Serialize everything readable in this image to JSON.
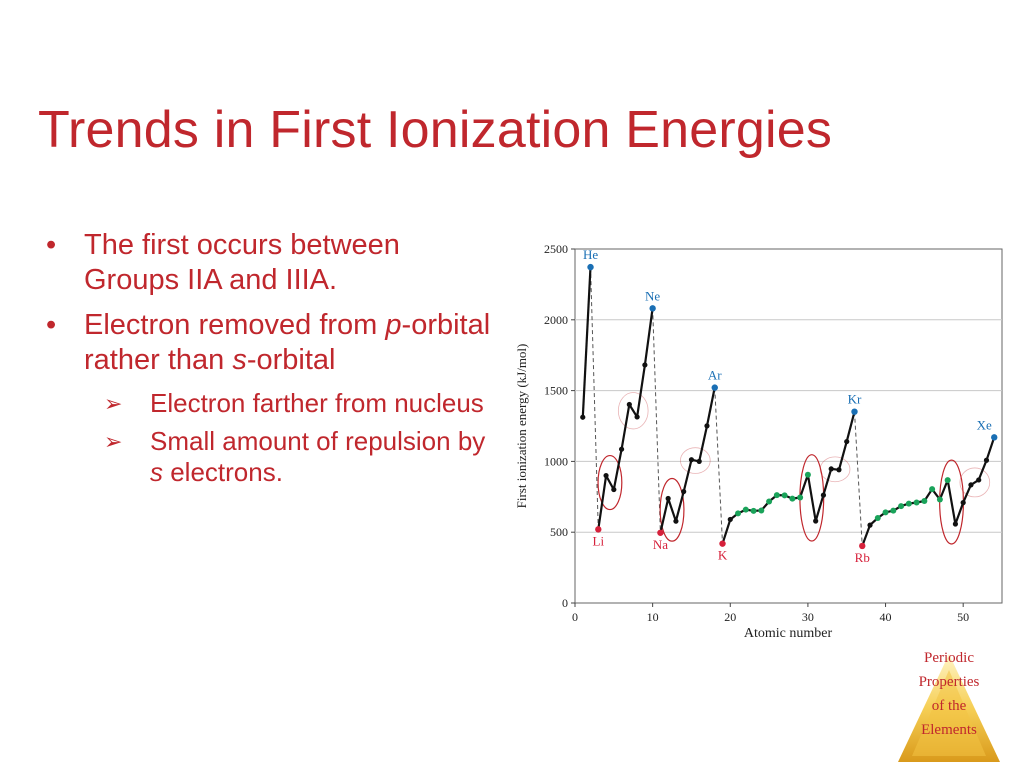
{
  "slide": {
    "title": "Trends in First Ionization Energies",
    "bullets": [
      {
        "parts": [
          {
            "t": "The first occurs between Groups IIA and IIIA.",
            "i": false
          }
        ]
      },
      {
        "parts": [
          {
            "t": "Electron removed from ",
            "i": false
          },
          {
            "t": "p",
            "i": true
          },
          {
            "t": "-orbital rather than ",
            "i": false
          },
          {
            "t": "s",
            "i": true
          },
          {
            "t": "-orbital",
            "i": false
          }
        ],
        "sub": [
          {
            "parts": [
              {
                "t": "Electron farther from nucleus",
                "i": false
              }
            ]
          },
          {
            "parts": [
              {
                "t": "Small amount of repulsion by ",
                "i": false
              },
              {
                "t": "s",
                "i": true
              },
              {
                "t": " electrons.",
                "i": false
              }
            ]
          }
        ]
      }
    ],
    "bullet_glyph": "•",
    "sub_bullet_glyph": "➢"
  },
  "logo": {
    "lines": [
      "Periodic",
      "Properties",
      "of the",
      "Elements"
    ]
  },
  "colors": {
    "accent": "#c0272d",
    "noble": "#1a6fb4",
    "alkali": "#d6213b",
    "transition": "#1aa35a",
    "line": "#111111"
  },
  "chart_data": {
    "type": "line",
    "xlabel": "Atomic number",
    "ylabel": "First ionization energy (kJ/mol)",
    "xlim": [
      0,
      55
    ],
    "ylim": [
      0,
      2500
    ],
    "x_ticks": [
      0,
      10,
      20,
      30,
      40,
      50
    ],
    "y_ticks": [
      0,
      500,
      1000,
      1500,
      2000,
      2500
    ],
    "series": [
      {
        "x": [
          1,
          2
        ],
        "y": [
          1312,
          2372
        ]
      },
      {
        "x": [
          3,
          4,
          5,
          6,
          7,
          8,
          9,
          10
        ],
        "y": [
          520,
          900,
          801,
          1086,
          1402,
          1314,
          1681,
          2081
        ]
      },
      {
        "x": [
          11,
          12,
          13,
          14,
          15,
          16,
          17,
          18
        ],
        "y": [
          496,
          738,
          578,
          787,
          1012,
          1000,
          1251,
          1521
        ]
      },
      {
        "x": [
          19,
          20,
          21,
          22,
          23,
          24,
          25,
          26,
          27,
          28,
          29,
          30,
          31,
          32,
          33,
          34,
          35,
          36
        ],
        "y": [
          419,
          590,
          633,
          659,
          651,
          653,
          717,
          762,
          760,
          737,
          745,
          906,
          579,
          762,
          947,
          941,
          1140,
          1351
        ]
      },
      {
        "x": [
          37,
          38,
          39,
          40,
          41,
          42,
          43,
          44,
          45,
          46,
          47,
          48,
          49,
          50,
          51,
          52,
          53,
          54
        ],
        "y": [
          403,
          550,
          600,
          640,
          652,
          684,
          702,
          710,
          720,
          804,
          731,
          868,
          558,
          709,
          834,
          869,
          1008,
          1170
        ]
      }
    ],
    "drops": [
      [
        2,
        3
      ],
      [
        10,
        11
      ],
      [
        18,
        19
      ],
      [
        36,
        37
      ]
    ],
    "transition_ranges": [
      [
        21,
        30
      ],
      [
        39,
        48
      ]
    ],
    "element_labels": [
      {
        "z": 2,
        "label": "He",
        "kind": "noble"
      },
      {
        "z": 3,
        "label": "Li",
        "kind": "alkali"
      },
      {
        "z": 10,
        "label": "Ne",
        "kind": "noble"
      },
      {
        "z": 11,
        "label": "Na",
        "kind": "alkali"
      },
      {
        "z": 18,
        "label": "Ar",
        "kind": "noble"
      },
      {
        "z": 19,
        "label": "K",
        "kind": "alkali"
      },
      {
        "z": 36,
        "label": "Kr",
        "kind": "noble"
      },
      {
        "z": 37,
        "label": "Rb",
        "kind": "alkali"
      },
      {
        "z": 54,
        "label": "Xe",
        "kind": "noble"
      }
    ],
    "ellipses_bold": [
      [
        4,
        5
      ],
      [
        12,
        13
      ],
      [
        30,
        31
      ],
      [
        48,
        49
      ]
    ],
    "ellipses_faint": [
      [
        7,
        8
      ],
      [
        15,
        16
      ],
      [
        33,
        34
      ],
      [
        51,
        52
      ]
    ]
  }
}
